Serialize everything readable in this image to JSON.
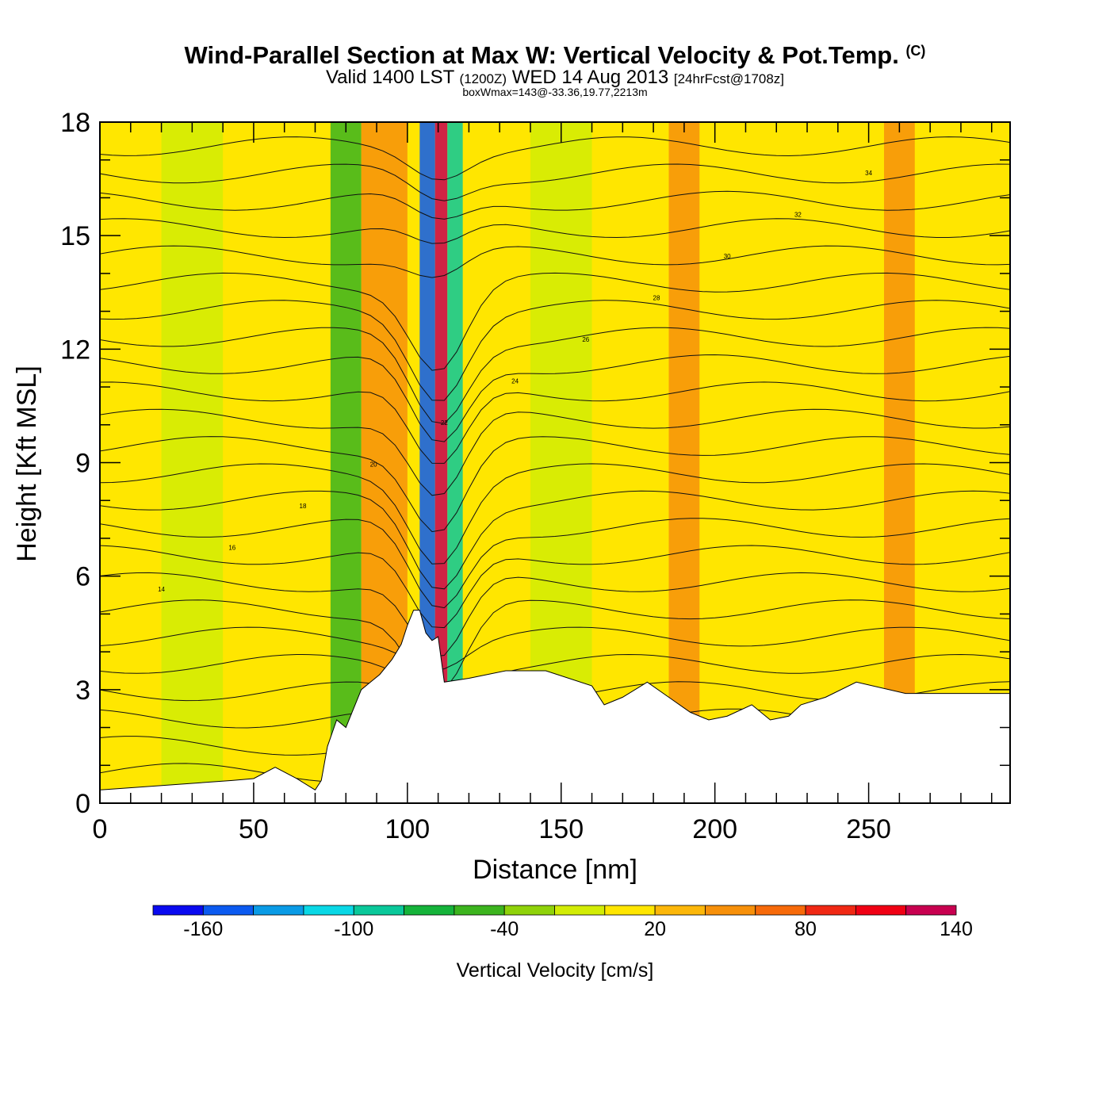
{
  "title": {
    "main": "Wind-Parallel Section at Max W: Vertical Velocity & Pot.Temp.",
    "copyright": "(C)",
    "valid_a": "Valid 1400 LST",
    "valid_utc": "(1200Z)",
    "valid_b": "WED 14 Aug 2013",
    "forecast": "[24hrFcst@1708z]",
    "boxwmax": "boxWmax=143@-33.36,19.77,2213m"
  },
  "colors": {
    "frame": "#000000",
    "terrain": "#ffffff",
    "contour": "#111111",
    "bands": [
      "#0a0af0",
      "#0b5af0",
      "#0a9be6",
      "#0ad8e6",
      "#0ac89a",
      "#15b33a",
      "#3cb41e",
      "#8fd20a",
      "#d2ec05",
      "#ffe600",
      "#fcb70a",
      "#f7900a",
      "#f76a0a",
      "#f02814",
      "#f00014",
      "#c80050"
    ]
  },
  "chart_data": {
    "type": "heatmap",
    "xlabel": "Distance [nm]",
    "ylabel": "Height [Kft MSL]",
    "xlim": [
      0,
      296
    ],
    "ylim": [
      0,
      18
    ],
    "x_ticks": [
      0,
      50,
      100,
      150,
      200,
      250
    ],
    "y_ticks": [
      0,
      3,
      6,
      9,
      12,
      15,
      18
    ],
    "colorbar": {
      "title": "Vertical Velocity [cm/s]",
      "levels": [
        -180,
        -160,
        -140,
        -120,
        -100,
        -80,
        -60,
        -40,
        -20,
        0,
        20,
        40,
        60,
        80,
        100,
        120,
        140
      ],
      "labeled": [
        -160,
        -100,
        -40,
        20,
        80,
        140
      ]
    },
    "background_velocity_bands": [
      {
        "x": [
          0,
          20
        ],
        "w": 10
      },
      {
        "x": [
          20,
          40
        ],
        "w": -10
      },
      {
        "x": [
          75,
          85
        ],
        "w": -50
      },
      {
        "x": [
          85,
          100
        ],
        "w": 40
      },
      {
        "x": [
          104,
          109
        ],
        "w": -150
      },
      {
        "x": [
          109,
          113
        ],
        "w": 143
      },
      {
        "x": [
          113,
          118
        ],
        "w": -90
      },
      {
        "x": [
          140,
          160
        ],
        "w": -20
      },
      {
        "x": [
          185,
          195
        ],
        "w": 50
      },
      {
        "x": [
          255,
          265
        ],
        "w": 40
      }
    ],
    "terrain_profile": {
      "x": [
        0,
        43,
        50,
        57,
        64,
        70,
        72,
        74,
        77,
        80,
        82,
        85,
        88,
        91,
        95,
        98,
        100,
        102,
        104,
        106,
        108,
        110,
        112,
        120,
        132,
        145,
        160,
        164,
        170,
        178,
        185,
        192,
        198,
        204,
        212,
        218,
        224,
        228,
        236,
        246,
        262,
        275,
        296
      ],
      "height_kft": [
        0.35,
        0.6,
        0.65,
        0.95,
        0.65,
        0.35,
        0.6,
        1.5,
        2.2,
        2.0,
        2.4,
        3.0,
        3.2,
        3.4,
        3.8,
        4.2,
        4.7,
        5.1,
        5.1,
        4.5,
        4.3,
        4.4,
        3.2,
        3.3,
        3.5,
        3.5,
        3.1,
        2.6,
        2.8,
        3.2,
        2.8,
        2.4,
        2.2,
        2.3,
        2.6,
        2.2,
        2.3,
        2.6,
        2.8,
        3.2,
        2.9,
        2.9,
        2.9
      ]
    },
    "pot_temp_contours": {
      "units": "C",
      "interval": 1,
      "labels_shown": [
        14,
        16,
        18,
        20,
        22,
        24,
        26,
        28,
        30,
        32,
        34
      ]
    }
  }
}
